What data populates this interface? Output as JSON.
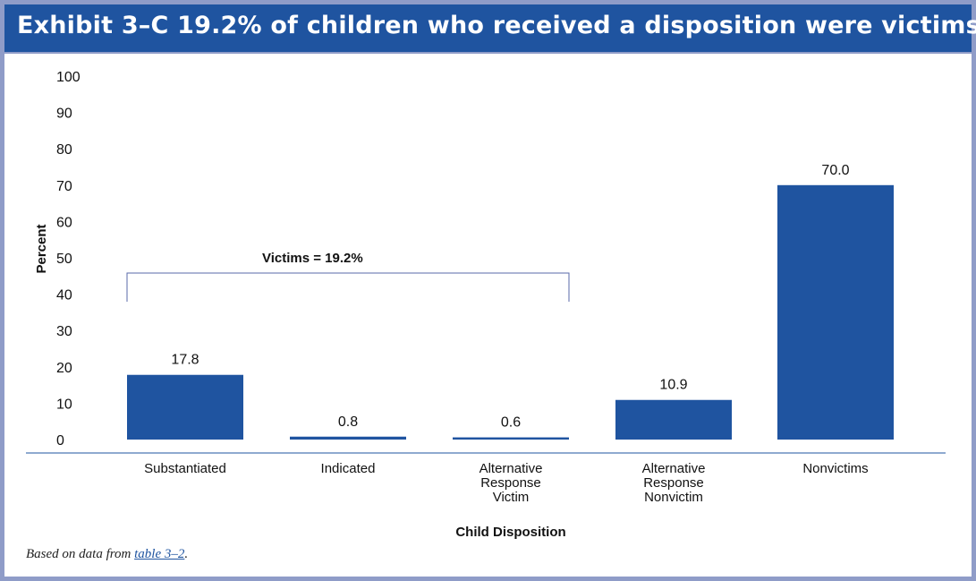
{
  "header": {
    "title": "Exhibit 3–C 19.2% of children who received a disposition were victims"
  },
  "footnote": {
    "prefix": "Based on data from ",
    "link_text": "table 3–2",
    "suffix": "."
  },
  "chart_data": {
    "type": "bar",
    "categories": [
      [
        "Substantiated"
      ],
      [
        "Indicated"
      ],
      [
        "Alternative",
        "Response",
        "Victim"
      ],
      [
        "Alternative",
        "Response",
        "Nonvictim"
      ],
      [
        "Nonvictims"
      ]
    ],
    "values": [
      17.8,
      0.8,
      0.6,
      10.9,
      70.0
    ],
    "value_labels": [
      "17.8",
      "0.8",
      "0.6",
      "10.9",
      "70.0"
    ],
    "xlabel": "Child Disposition",
    "ylabel": "Percent",
    "ylim": [
      0,
      100
    ],
    "yticks": [
      0,
      10,
      20,
      30,
      40,
      50,
      60,
      70,
      80,
      90,
      100
    ],
    "grid": false,
    "bar_color": "#1f54a0",
    "annotation": {
      "text": "Victims = 19.2%",
      "spans_categories": [
        0,
        2
      ]
    }
  }
}
